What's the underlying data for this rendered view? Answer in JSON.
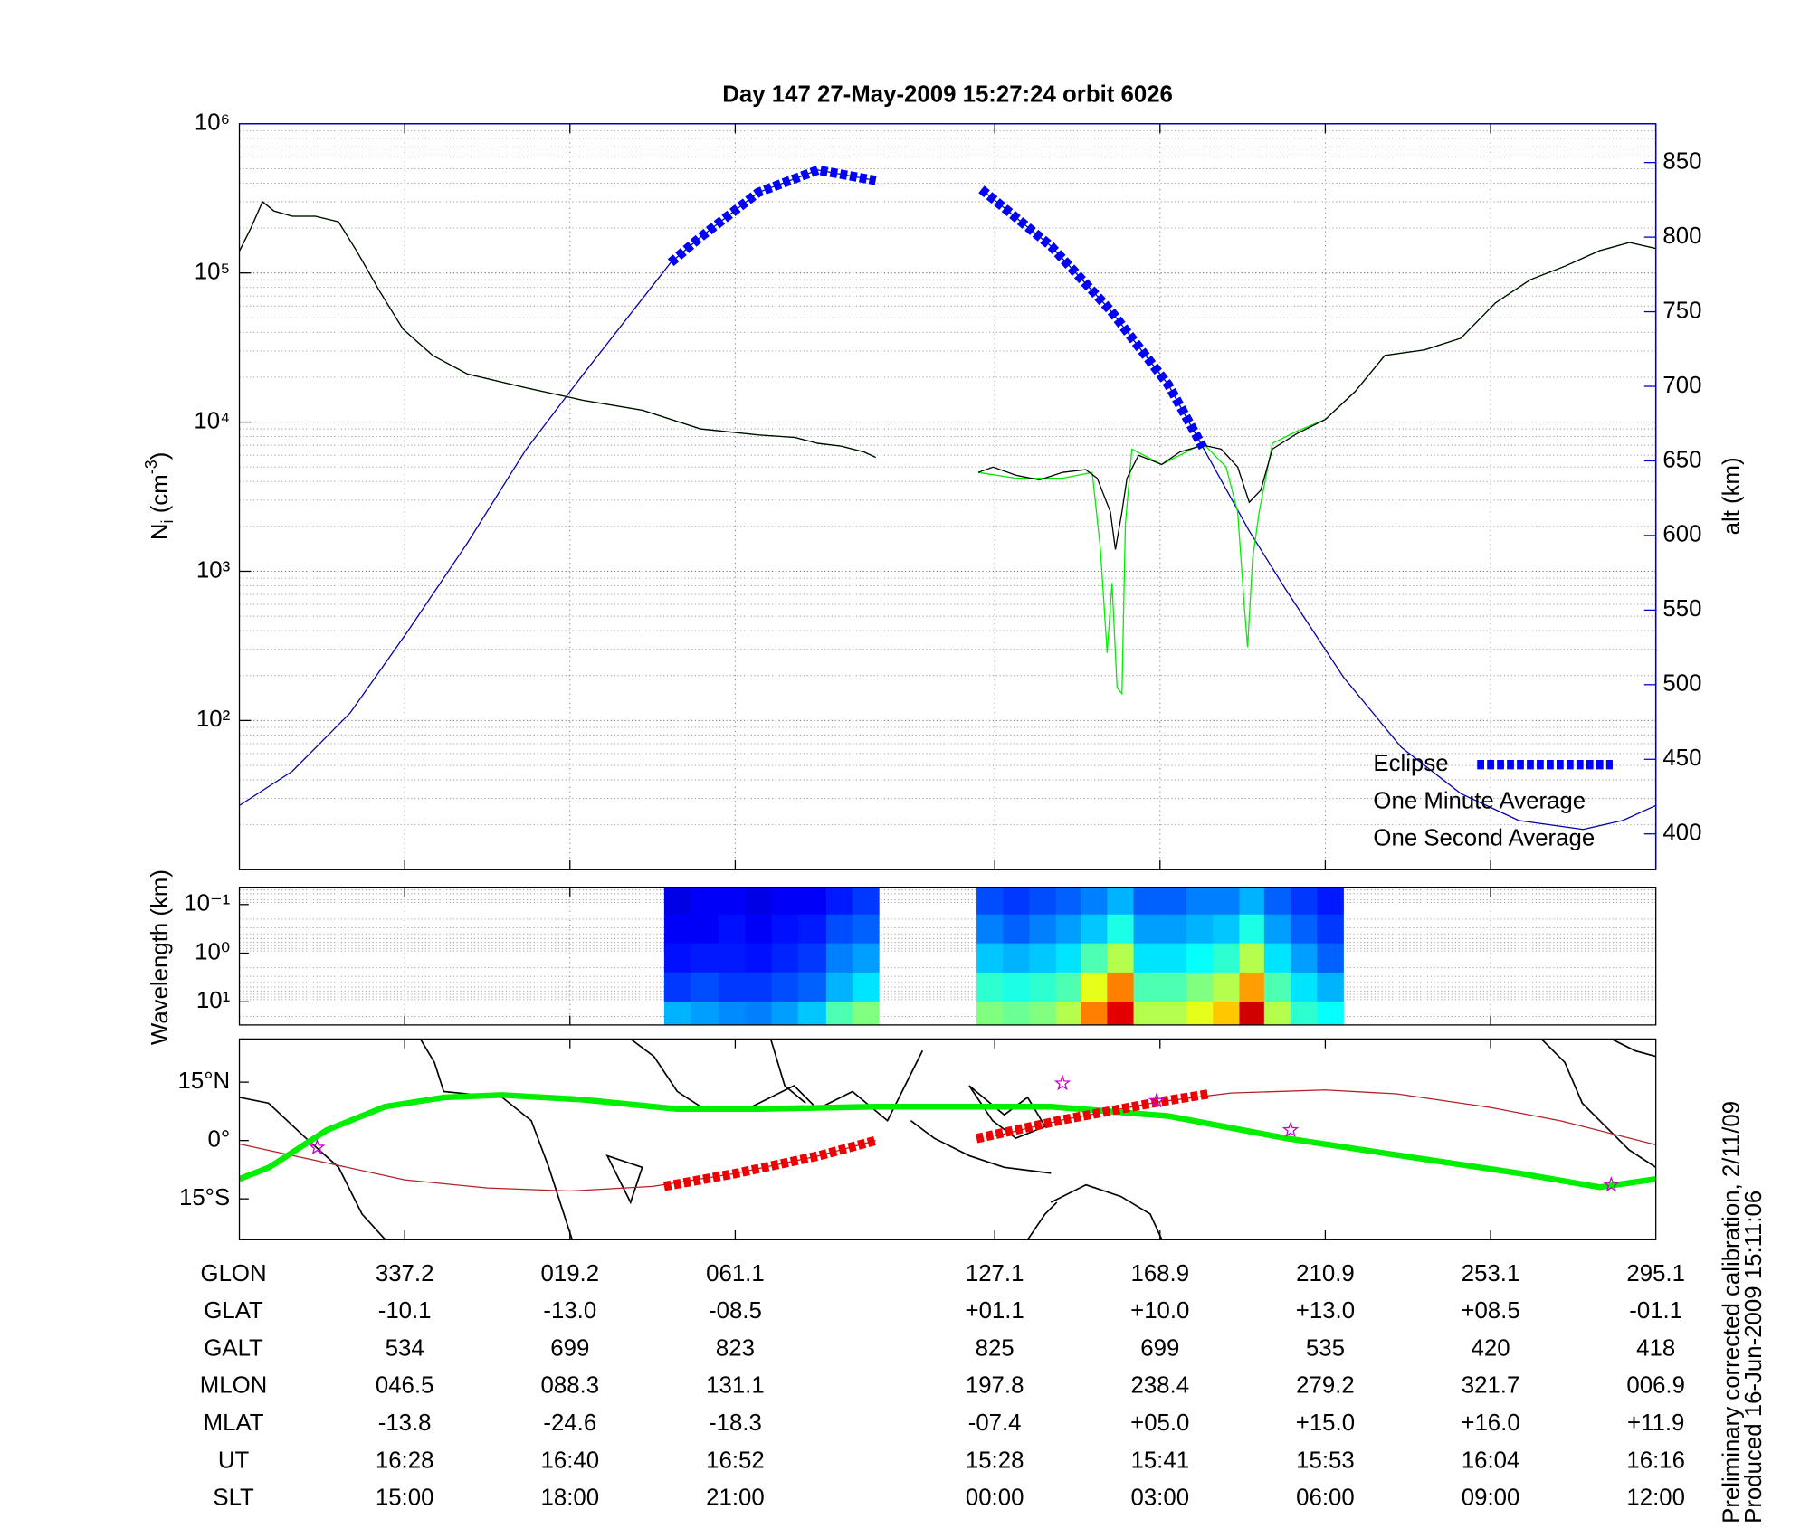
{
  "chart_data": [
    {
      "type": "line",
      "title": "Day 147  27-May-2009 15:27:24   orbit 6026",
      "ylabel_parts": [
        "N",
        "i",
        " (cm",
        "-3",
        ")"
      ],
      "y2label": "alt (km)",
      "xlim": [
        0,
        8.57
      ],
      "xticks": [
        1,
        2,
        3,
        4.57,
        5.57,
        6.57,
        7.57
      ],
      "log_y": true,
      "ylim": [
        10,
        1000000
      ],
      "yticks": [
        {
          "value": 100,
          "label": "10²"
        },
        {
          "value": 1000,
          "label": "10³"
        },
        {
          "value": 10000,
          "label": "10⁴"
        },
        {
          "value": 100000,
          "label": "10⁵"
        },
        {
          "value": 1000000,
          "label": "10⁶"
        }
      ],
      "minor_yticks": [
        20,
        30,
        40,
        50,
        60,
        70,
        80,
        90,
        200,
        300,
        400,
        500,
        600,
        700,
        800,
        900,
        2000,
        3000,
        4000,
        5000,
        6000,
        7000,
        8000,
        9000,
        20000,
        30000,
        40000,
        50000,
        60000,
        70000,
        80000,
        90000,
        200000,
        300000,
        400000,
        500000,
        600000,
        700000,
        800000,
        900000
      ],
      "y2lim": [
        376,
        876
      ],
      "y2ticks": [
        400,
        450,
        500,
        550,
        600,
        650,
        700,
        750,
        800,
        850
      ],
      "y2color": "#0000cc",
      "grid": true,
      "legend": "lower right",
      "altitude": {
        "color": "#0000aa",
        "axis": "y2",
        "x": [
          0,
          0.32,
          0.67,
          1.02,
          1.38,
          1.73,
          2.08,
          2.44,
          2.61,
          2.79,
          3.14,
          3.5,
          3.85,
          4.16,
          4.49,
          4.91,
          5.27,
          5.62,
          5.83,
          6.11,
          6.33,
          6.68,
          7.03,
          7.39,
          7.74,
          8.13,
          8.37,
          8.57
        ],
        "values": [
          419,
          442,
          481,
          536,
          595,
          657,
          708,
          759,
          783,
          800,
          830,
          845,
          838,
          null,
          832,
          794,
          751,
          701,
          659,
          603,
          564,
          505,
          458,
          427,
          409,
          403,
          409,
          419
        ]
      },
      "series": [
        {
          "name": "Eclipse",
          "color": "#0000ff",
          "axis": "y2",
          "style": "dashed",
          "x": [
            2.61,
            2.79,
            3.14,
            3.5,
            3.85,
            4.16,
            4.49,
            4.91,
            5.27,
            5.62,
            5.83
          ],
          "values": [
            783,
            800,
            830,
            845,
            838,
            null,
            832,
            794,
            751,
            701,
            659
          ]
        },
        {
          "name": "One Minute Average",
          "color": "#000000",
          "x": [
            0,
            0.07,
            0.14,
            0.21,
            0.32,
            0.46,
            0.6,
            0.71,
            0.85,
            0.99,
            1.17,
            1.38,
            1.73,
            2.08,
            2.44,
            2.79,
            3.14,
            3.36,
            3.5,
            3.64,
            3.78,
            3.85,
            4.16,
            4.47,
            4.56,
            4.7,
            4.84,
            4.98,
            5.12,
            5.19,
            5.27,
            5.3,
            5.34,
            5.37,
            5.44,
            5.58,
            5.69,
            5.83,
            5.94,
            6.04,
            6.11,
            6.18,
            6.25,
            6.4,
            6.57,
            6.75,
            6.93,
            7.17,
            7.39,
            7.6,
            7.81,
            8.02,
            8.23,
            8.41,
            8.57
          ],
          "values": [
            140000,
            200000,
            300000,
            260000,
            240000,
            240000,
            220000,
            140000,
            75000,
            42000,
            28000,
            21000,
            17000,
            14000,
            12000,
            9000,
            8200,
            7900,
            7200,
            6900,
            6300,
            5800,
            null,
            4600,
            5000,
            4400,
            4100,
            4600,
            4800,
            4200,
            2500,
            1400,
            2500,
            4200,
            6000,
            5200,
            6300,
            7000,
            6600,
            5000,
            2900,
            3500,
            6600,
            8400,
            10400,
            16000,
            28000,
            30500,
            36500,
            63000,
            90000,
            111000,
            141000,
            160000,
            146000
          ]
        },
        {
          "name": "One Second Average",
          "color": "#00ee00",
          "x": [
            0,
            0.07,
            0.14,
            0.21,
            0.32,
            0.46,
            0.6,
            0.71,
            0.85,
            0.99,
            1.17,
            1.38,
            1.73,
            2.08,
            2.44,
            2.79,
            3.14,
            3.36,
            3.5,
            3.64,
            3.78,
            3.85,
            4.16,
            4.47,
            4.7,
            4.98,
            5.16,
            5.21,
            5.25,
            5.28,
            5.31,
            5.34,
            5.36,
            5.4,
            5.58,
            5.83,
            5.97,
            6.04,
            6.08,
            6.1,
            6.13,
            6.17,
            6.25,
            6.4,
            6.57,
            6.75,
            6.93,
            7.17,
            7.39,
            7.6,
            7.81,
            8.02,
            8.23,
            8.41,
            8.57
          ],
          "values": [
            140000,
            200000,
            300000,
            260000,
            240000,
            240000,
            220000,
            140000,
            75000,
            42000,
            28000,
            21000,
            17000,
            14000,
            12000,
            9000,
            8200,
            7900,
            7200,
            6900,
            6300,
            5800,
            null,
            4600,
            4200,
            4200,
            4600,
            1400,
            284,
            835,
            166,
            151,
            2050,
            6600,
            5200,
            7200,
            5000,
            2500,
            580,
            310,
            1200,
            2500,
            7200,
            8700,
            10400,
            16000,
            28000,
            30500,
            36500,
            63000,
            90000,
            111000,
            141000,
            160000,
            146000
          ]
        }
      ]
    },
    {
      "type": "heatmap",
      "ylabel": "Wavelength (km)",
      "xlim": [
        0,
        8.57
      ],
      "xticks": [
        1,
        2,
        3,
        4.57,
        5.57,
        6.57,
        7.57
      ],
      "log_y": true,
      "y_reversed": true,
      "ylim": [
        0.044,
        30
      ],
      "yticks": [
        {
          "value": 0.1,
          "label": "10⁻¹"
        },
        {
          "value": 1,
          "label": "10⁰"
        },
        {
          "value": 10,
          "label": "10¹"
        }
      ],
      "minor_yticks": [
        0.05,
        0.06,
        0.07,
        0.08,
        0.09,
        0.2,
        0.3,
        0.4,
        0.5,
        0.6,
        0.7,
        0.8,
        0.9,
        2,
        3,
        4,
        5,
        6,
        7,
        8,
        9,
        20
      ],
      "colormap": "jet",
      "xbins": [
        2.57,
        2.73,
        2.9,
        3.06,
        3.22,
        3.38,
        3.55,
        3.71,
        3.87,
        4.46,
        4.62,
        4.78,
        4.94,
        5.09,
        5.25,
        5.41,
        5.57,
        5.73,
        5.89,
        6.05,
        6.2,
        6.36,
        6.52,
        6.68
      ],
      "ybins": [
        0.044,
        0.16,
        0.63,
        2.5,
        10,
        30
      ],
      "z": [
        [
          0.1,
          0.12,
          0.12,
          0.1,
          0.12,
          0.12,
          0.15,
          0.18,
          null,
          0.2,
          0.18,
          0.2,
          0.22,
          0.25,
          0.3,
          0.22,
          0.22,
          0.25,
          0.25,
          0.3,
          0.22,
          0.18,
          0.15
        ],
        [
          0.12,
          0.12,
          0.14,
          0.12,
          0.14,
          0.15,
          0.2,
          0.22,
          null,
          0.25,
          0.22,
          0.25,
          0.28,
          0.32,
          0.4,
          0.28,
          0.28,
          0.3,
          0.32,
          0.4,
          0.28,
          0.22,
          0.18
        ],
        [
          0.14,
          0.15,
          0.15,
          0.14,
          0.16,
          0.18,
          0.25,
          0.28,
          null,
          0.32,
          0.3,
          0.32,
          0.35,
          0.45,
          0.55,
          0.35,
          0.35,
          0.38,
          0.42,
          0.55,
          0.35,
          0.28,
          0.22
        ],
        [
          0.18,
          0.2,
          0.18,
          0.18,
          0.2,
          0.22,
          0.3,
          0.35,
          null,
          0.42,
          0.4,
          0.42,
          0.45,
          0.6,
          0.75,
          0.45,
          0.45,
          0.5,
          0.55,
          0.72,
          0.45,
          0.35,
          0.3
        ],
        [
          0.3,
          0.28,
          0.26,
          0.25,
          0.28,
          0.32,
          0.45,
          0.5,
          null,
          0.5,
          0.48,
          0.5,
          0.55,
          0.75,
          0.9,
          0.55,
          0.55,
          0.6,
          0.68,
          0.92,
          0.55,
          0.42,
          0.38
        ]
      ]
    },
    {
      "type": "map",
      "xlim": [
        0,
        8.57
      ],
      "xticks": [
        1,
        2,
        3,
        4.57,
        5.57,
        6.57,
        7.57
      ],
      "ylim": [
        -25.5,
        26.1
      ],
      "yticks": [
        {
          "value": 15,
          "label": "15°N"
        },
        {
          "value": 0,
          "label": "0°"
        },
        {
          "value": -15,
          "label": "15°S"
        }
      ],
      "series": [
        {
          "color": "#b22222",
          "x": [
            0,
            0.5,
            1,
            1.5,
            2,
            2.5,
            3,
            3.5,
            3.85,
            4.16,
            4.57,
            5.0,
            5.57,
            6.0,
            6.57,
            7.0,
            7.57,
            8.0,
            8.57
          ],
          "values": [
            -0.9,
            -5.5,
            -10.1,
            -12.2,
            -13.0,
            -11.8,
            -8.5,
            -4.0,
            0,
            null,
            1.1,
            5.5,
            10.0,
            12.2,
            13.0,
            12.0,
            8.5,
            5.0,
            -1.1
          ]
        },
        {
          "color": "#00ee00",
          "x": [
            0,
            0.18,
            0.53,
            0.88,
            1.24,
            1.59,
            2.08,
            2.65,
            3.14,
            3.85,
            4.91,
            5.62,
            6.33,
            7.03,
            7.74,
            8.23,
            8.57
          ],
          "values": [
            -9.9,
            -6.9,
            2.7,
            8.7,
            11.1,
            11.7,
            10.5,
            8.1,
            8.1,
            8.7,
            8.7,
            6.3,
            0.6,
            -3.9,
            -8.4,
            -12.0,
            -9.9
          ]
        },
        {
          "color": "#ee0000",
          "style": "dashed",
          "x": [
            2.57,
            3.0,
            3.5,
            3.85,
            4.16,
            4.46,
            5.0,
            5.57,
            5.87
          ],
          "values": [
            -11.8,
            -8.5,
            -4.0,
            0,
            null,
            0.5,
            5.5,
            10.0,
            12.0
          ]
        }
      ],
      "stars": {
        "color": "#cc00cc",
        "x": [
          0.47,
          4.98,
          5.55,
          6.36,
          8.3
        ],
        "values": [
          -1.8,
          14.7,
          10.2,
          2.7,
          -11.4
        ]
      }
    }
  ],
  "table": {
    "rows": [
      {
        "label": "GLON",
        "values": [
          "337.2",
          "019.2",
          "061.1",
          "127.1",
          "168.9",
          "210.9",
          "253.1",
          "295.1"
        ]
      },
      {
        "label": "GLAT",
        "values": [
          "-10.1",
          "-13.0",
          "-08.5",
          "+01.1",
          "+10.0",
          "+13.0",
          "+08.5",
          "-01.1"
        ]
      },
      {
        "label": "GALT",
        "values": [
          "534",
          "699",
          "823",
          "825",
          "699",
          "535",
          "420",
          "418"
        ]
      },
      {
        "label": "MLON",
        "values": [
          "046.5",
          "088.3",
          "131.1",
          "197.8",
          "238.4",
          "279.2",
          "321.7",
          "006.9"
        ]
      },
      {
        "label": "MLAT",
        "values": [
          "-13.8",
          "-24.6",
          "-18.3",
          "-07.4",
          "+05.0",
          "+15.0",
          "+16.0",
          "+11.9"
        ]
      },
      {
        "label": "UT",
        "values": [
          "16:28",
          "16:40",
          "16:52",
          "15:28",
          "15:41",
          "15:53",
          "16:04",
          "16:16"
        ]
      },
      {
        "label": "SLT",
        "values": [
          "15:00",
          "18:00",
          "21:00",
          "00:00",
          "03:00",
          "06:00",
          "09:00",
          "12:00"
        ]
      }
    ]
  },
  "footer": [
    "Preliminary corrected calibration, 2/11/09",
    "Produced 16-Jun-2009 15:11:06"
  ]
}
